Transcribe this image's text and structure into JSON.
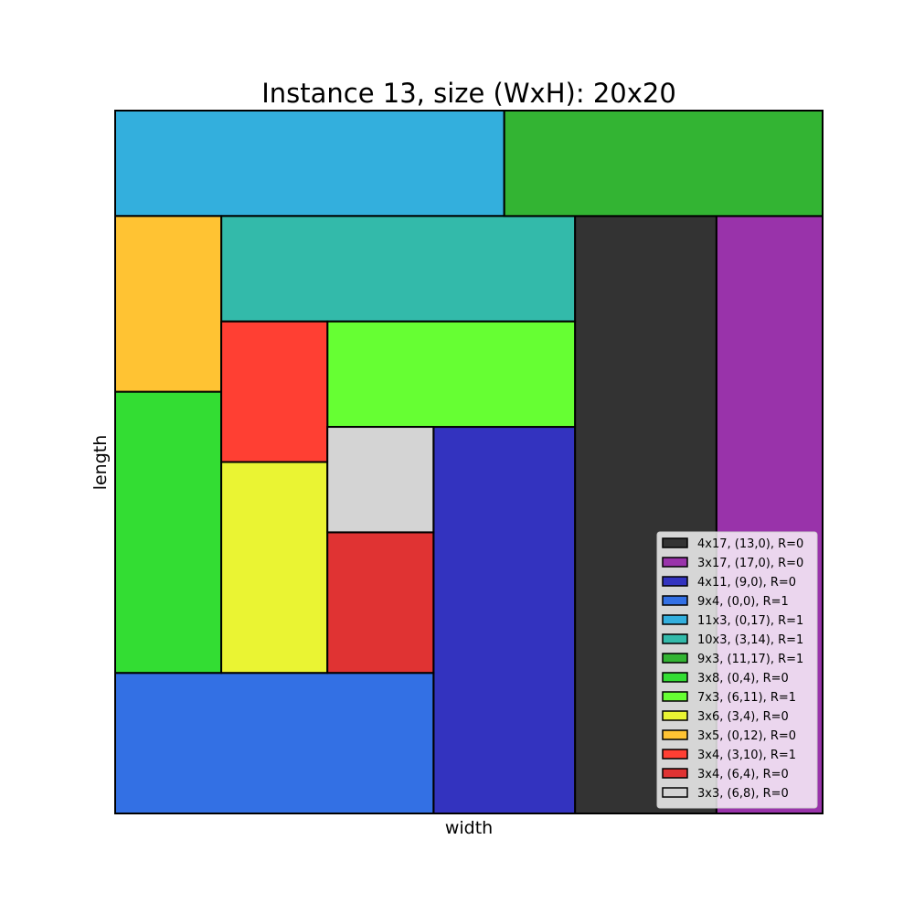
{
  "chart_data": {
    "type": "rectangle-packing",
    "title": "Instance 13, size (WxH): 20x20",
    "xlabel": "width",
    "ylabel": "length",
    "container": {
      "width": 20,
      "height": 20
    },
    "grid": false,
    "axis_ticks": false,
    "legend_placement": "lower-right",
    "rectangles": [
      {
        "label": "4x17, (13,0), R=0",
        "x": 13,
        "y": 0,
        "w": 4,
        "h": 17,
        "color": "#333333"
      },
      {
        "label": "3x17, (17,0), R=0",
        "x": 17,
        "y": 0,
        "w": 3,
        "h": 17,
        "color": "#9933aa"
      },
      {
        "label": "4x11, (9,0), R=0",
        "x": 9,
        "y": 0,
        "w": 4,
        "h": 11,
        "color": "#3333bf"
      },
      {
        "label": "9x4, (0,0), R=1",
        "x": 0,
        "y": 0,
        "w": 9,
        "h": 4,
        "color": "#3370e4"
      },
      {
        "label": "11x3, (0,17), R=1",
        "x": 0,
        "y": 17,
        "w": 11,
        "h": 3,
        "color": "#33afdd"
      },
      {
        "label": "10x3, (3,14), R=1",
        "x": 3,
        "y": 14,
        "w": 10,
        "h": 3,
        "color": "#33baaa"
      },
      {
        "label": "9x3, (11,17), R=1",
        "x": 11,
        "y": 17,
        "w": 9,
        "h": 3,
        "color": "#33b433"
      },
      {
        "label": "3x8, (0,4), R=0",
        "x": 0,
        "y": 4,
        "w": 3,
        "h": 8,
        "color": "#33dd33"
      },
      {
        "label": "7x3, (6,11), R=1",
        "x": 6,
        "y": 11,
        "w": 7,
        "h": 3,
        "color": "#66ff33"
      },
      {
        "label": "3x6, (3,4), R=0",
        "x": 3,
        "y": 4,
        "w": 3,
        "h": 6,
        "color": "#eaf433"
      },
      {
        "label": "3x5, (0,12), R=0",
        "x": 0,
        "y": 12,
        "w": 3,
        "h": 5,
        "color": "#ffc333"
      },
      {
        "label": "3x4, (3,10), R=1",
        "x": 3,
        "y": 10,
        "w": 3,
        "h": 4,
        "color": "#ff3f33"
      },
      {
        "label": "3x4, (6,4), R=0",
        "x": 6,
        "y": 4,
        "w": 3,
        "h": 4,
        "color": "#e03333"
      },
      {
        "label": "3x3, (6,8), R=0",
        "x": 6,
        "y": 8,
        "w": 3,
        "h": 3,
        "color": "#d4d4d4"
      }
    ]
  }
}
